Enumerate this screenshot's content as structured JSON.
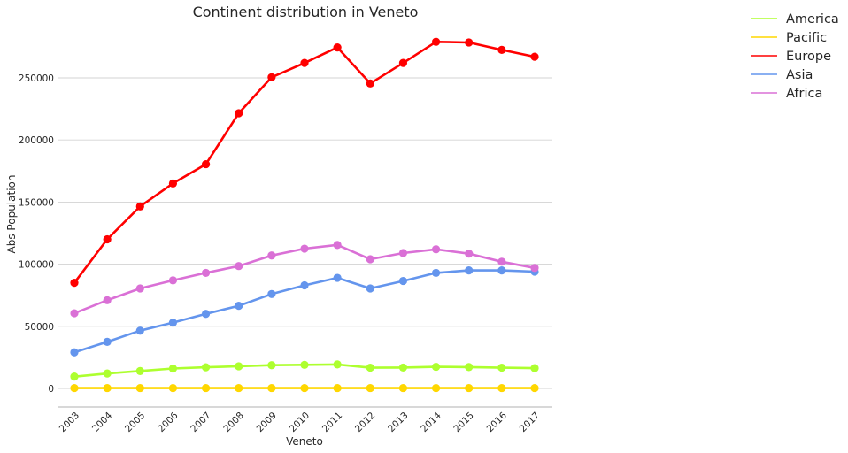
{
  "chart_data": {
    "type": "line",
    "title": "Continent distribution in Veneto",
    "xlabel": "Veneto",
    "ylabel": "Abs Population",
    "categories": [
      "2003",
      "2004",
      "2005",
      "2006",
      "2007",
      "2008",
      "2009",
      "2010",
      "2011",
      "2012",
      "2013",
      "2014",
      "2015",
      "2016",
      "2017"
    ],
    "ylim": [
      -14000,
      296000
    ],
    "yticks": [
      0,
      50000,
      100000,
      150000,
      200000,
      250000
    ],
    "ytick_labels": [
      "0",
      "50000",
      "100000",
      "150000",
      "200000",
      "250000"
    ],
    "grid": "horizontal",
    "legend_position": "top-right, outside plot",
    "series": [
      {
        "name": "America",
        "color": "#adff2f",
        "values": [
          9500,
          12000,
          14000,
          16000,
          17000,
          17800,
          18700,
          19000,
          19300,
          16700,
          16800,
          17400,
          17200,
          16700,
          16300
        ]
      },
      {
        "name": "Pacific",
        "color": "#ffd700",
        "values": [
          300,
          300,
          300,
          300,
          300,
          300,
          300,
          300,
          300,
          300,
          300,
          300,
          300,
          300,
          300
        ]
      },
      {
        "name": "Europe",
        "color": "#ff0000",
        "values": [
          85000,
          120000,
          146500,
          165000,
          180500,
          221500,
          250500,
          262000,
          274500,
          245500,
          262000,
          279000,
          278500,
          272500,
          267000
        ]
      },
      {
        "name": "Asia",
        "color": "#6495ed",
        "values": [
          29000,
          37500,
          46500,
          53000,
          60000,
          66500,
          76000,
          83000,
          89000,
          80500,
          86500,
          93000,
          95000,
          95000,
          94000
        ]
      },
      {
        "name": "Africa",
        "color": "#da70d6",
        "values": [
          60500,
          71000,
          80500,
          87000,
          93000,
          98500,
          107000,
          112500,
          115500,
          104000,
          109000,
          112000,
          108500,
          102000,
          97000
        ]
      }
    ]
  }
}
